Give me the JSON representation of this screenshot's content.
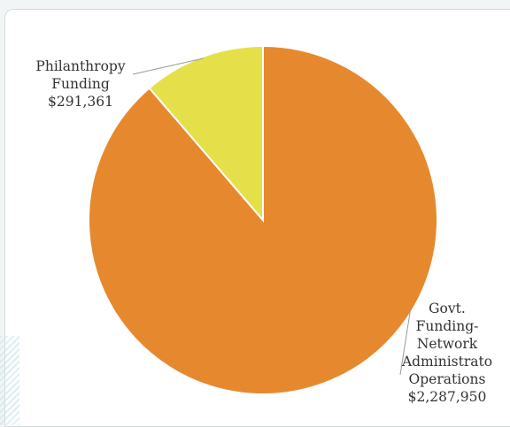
{
  "chart_data": {
    "type": "pie",
    "start_angle": "12 o'clock, clockwise",
    "slices": [
      {
        "label_lines": [
          "Govt.",
          "Funding-",
          "Network",
          "Administrato",
          "Operations",
          "$2,287,950"
        ],
        "value": 2287950,
        "color": "#e6892e"
      },
      {
        "label_lines": [
          "Philanthropy",
          "Funding",
          "$291,361"
        ],
        "value": 291361,
        "color": "#e5e04a"
      }
    ],
    "slice_border_color": "#ffffff"
  }
}
